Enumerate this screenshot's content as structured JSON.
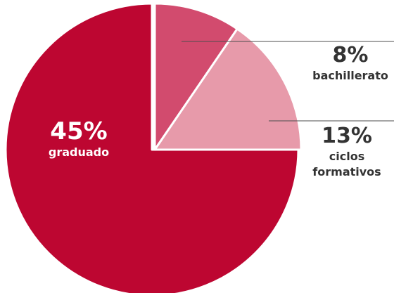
{
  "chart_data": {
    "type": "pie",
    "slices": [
      {
        "id": "graduado",
        "value": 45,
        "value_label": "45%",
        "label": "graduado",
        "color": "#BD0631"
      },
      {
        "id": "bachillerato",
        "value": 8,
        "value_label": "8%",
        "label": "bachillerato",
        "color": "#D24B6E"
      },
      {
        "id": "ciclos",
        "value": 13,
        "value_label": "13%",
        "label_lines": [
          "ciclos",
          "formativos"
        ],
        "color": "#E79AAA"
      }
    ]
  }
}
